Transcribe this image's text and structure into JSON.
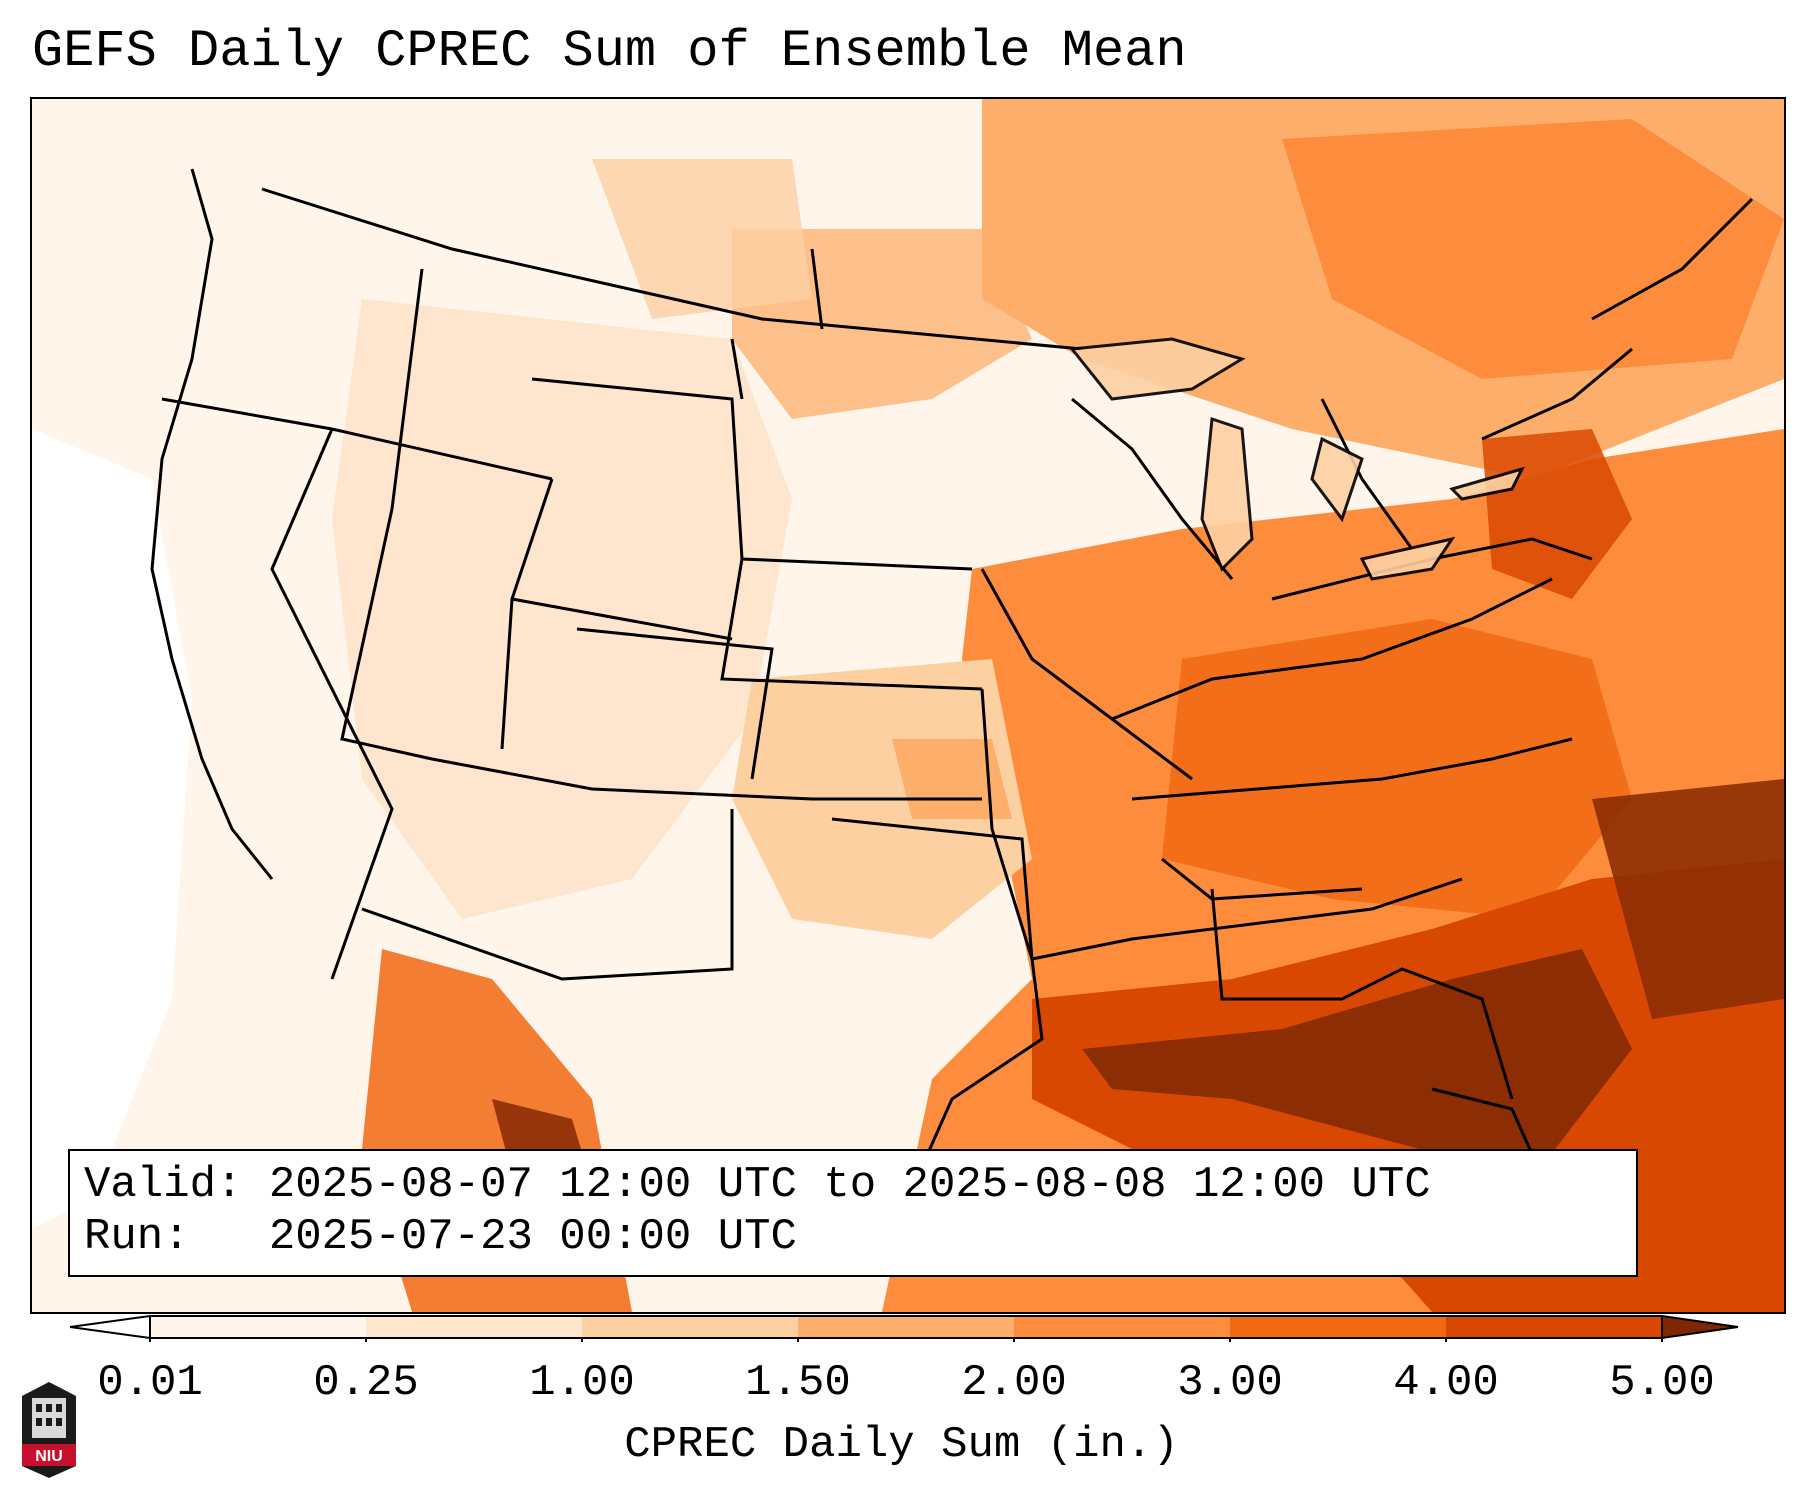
{
  "title": "GEFS Daily CPREC Sum of Ensemble Mean",
  "info": {
    "valid_label": "Valid:",
    "valid_value": "2025-08-07 12:00 UTC to 2025-08-08 12:00 UTC",
    "run_label": "Run:",
    "run_value": "2025-07-23 00:00 UTC"
  },
  "colorbar": {
    "label": "CPREC Daily Sum (in.)",
    "ticks": [
      "0.01",
      "0.25",
      "1.00",
      "1.50",
      "2.00",
      "3.00",
      "4.00",
      "5.00"
    ],
    "colors": [
      "#fff5eb",
      "#fee6ce",
      "#fdd0a2",
      "#fdae6b",
      "#fd8d3c",
      "#f16913",
      "#d94801",
      "#8c2d04"
    ],
    "under_color": "#ffffff",
    "over_color": "#7f2704"
  },
  "logo": {
    "text": "NIU"
  }
}
